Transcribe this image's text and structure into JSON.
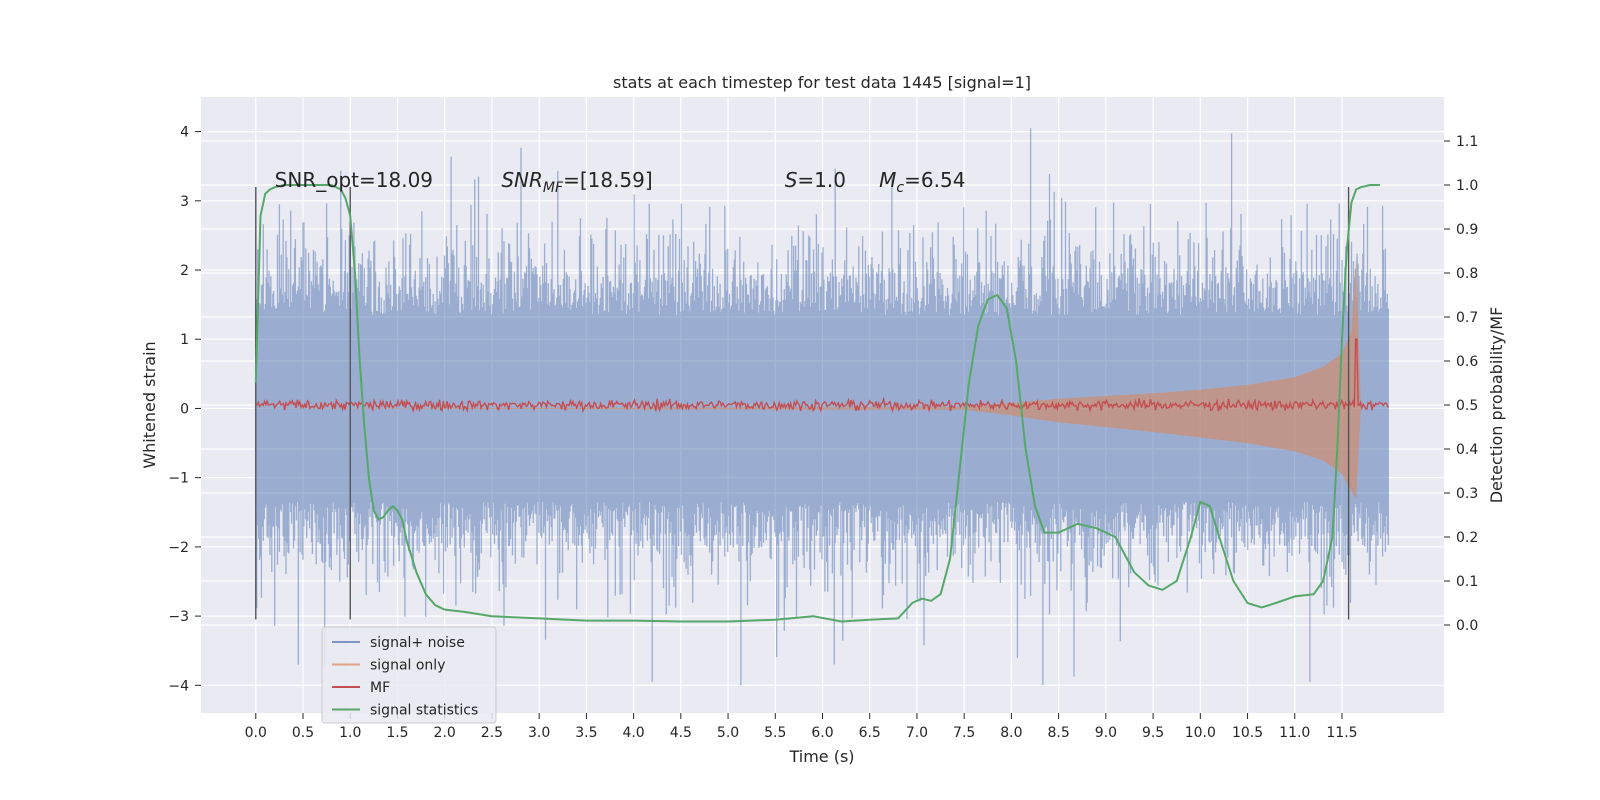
{
  "chart_data": {
    "type": "line",
    "title": "stats at each timestep for test data 1445 [signal=1]",
    "xlabel": "Time (s)",
    "ylabel": "Whitened strain",
    "ylabel_right": "Detection probability/MF",
    "xlim": [
      -0.58,
      12.58
    ],
    "ylim": [
      -4.4,
      4.5
    ],
    "ylim_right": [
      -0.2,
      1.2
    ],
    "x_ticks": [
      0.0,
      0.5,
      1.0,
      1.5,
      2.0,
      2.5,
      3.0,
      3.5,
      4.0,
      4.5,
      5.0,
      5.5,
      6.0,
      6.5,
      7.0,
      7.5,
      8.0,
      8.5,
      9.0,
      9.5,
      10.0,
      10.5,
      11.0,
      11.5
    ],
    "x_tick_labels": [
      "0.0",
      "0.5",
      "1.0",
      "1.5",
      "2.0",
      "2.5",
      "3.0",
      "3.5",
      "4.0",
      "4.5",
      "5.0",
      "5.5",
      "6.0",
      "6.5",
      "7.0",
      "7.5",
      "8.0",
      "8.5",
      "9.0",
      "9.5",
      "10.0",
      "10.5",
      "11.0",
      "11.5"
    ],
    "y_ticks": [
      -4,
      -3,
      -2,
      -1,
      0,
      1,
      2,
      3,
      4
    ],
    "y_tick_labels": [
      "−4",
      "−3",
      "−2",
      "−1",
      "0",
      "1",
      "2",
      "3",
      "4"
    ],
    "y_right_ticks": [
      0.0,
      0.1,
      0.2,
      0.3,
      0.4,
      0.5,
      0.6,
      0.7,
      0.8,
      0.9,
      1.0,
      1.1
    ],
    "y_right_tick_labels": [
      "0.0",
      "0.1",
      "0.2",
      "0.3",
      "0.4",
      "0.5",
      "0.6",
      "0.7",
      "0.8",
      "0.9",
      "1.0",
      "1.1"
    ],
    "grid": true,
    "legend_position": "lower-left",
    "annotations": [
      {
        "text": "SNR_opt=18.09",
        "x": 0.2,
        "y": 3.3
      },
      {
        "text": "SNR_MF=[18.59]",
        "x": 2.6,
        "y": 3.3
      },
      {
        "text": "S=1.0",
        "x": 5.6,
        "y": 3.3
      },
      {
        "text": "M_c=6.54",
        "x": 6.6,
        "y": 3.3
      }
    ],
    "vlines": [
      {
        "x": 0.0,
        "ymin": -3.05,
        "ymax": 3.2
      },
      {
        "x": 1.0,
        "ymin": -3.05,
        "ymax": 3.2
      },
      {
        "x": 11.57,
        "ymin": -3.05,
        "ymax": 3.2
      }
    ],
    "series": [
      {
        "name": "signal+ noise",
        "axis": "left",
        "color": "#4c72b0",
        "kind": "noise-envelope",
        "x_range": [
          0.0,
          11.99
        ],
        "core_amplitude": 1.35,
        "peak_amplitude": 4.1
      },
      {
        "name": "signal only",
        "axis": "left",
        "color": "#dd8452",
        "kind": "chirp-envelope",
        "x": [
          0.0,
          7.5,
          8.0,
          8.5,
          9.0,
          9.5,
          10.0,
          10.5,
          11.0,
          11.3,
          11.5,
          11.6,
          11.65,
          11.7,
          11.99
        ],
        "upper": [
          0.0,
          0.02,
          0.08,
          0.14,
          0.18,
          0.22,
          0.27,
          0.34,
          0.45,
          0.6,
          0.8,
          1.1,
          2.2,
          0.0,
          0.0
        ],
        "lower": [
          0.0,
          -0.02,
          -0.1,
          -0.2,
          -0.27,
          -0.34,
          -0.42,
          -0.5,
          -0.62,
          -0.75,
          -0.95,
          -1.2,
          -1.3,
          0.0,
          0.0
        ]
      },
      {
        "name": "MF",
        "axis": "left",
        "color": "#c44e52",
        "kind": "mf-noise",
        "baseline": 0.05,
        "amplitude": 0.08,
        "spike": {
          "x": 11.65,
          "y": 1.0
        }
      },
      {
        "name": "signal statistics",
        "axis": "right",
        "color": "#55a868",
        "kind": "line",
        "x": [
          0.0,
          0.05,
          0.1,
          0.15,
          0.2,
          0.3,
          0.4,
          0.5,
          0.6,
          0.7,
          0.8,
          0.9,
          0.95,
          1.0,
          1.05,
          1.1,
          1.15,
          1.2,
          1.25,
          1.3,
          1.35,
          1.4,
          1.45,
          1.5,
          1.55,
          1.6,
          1.7,
          1.8,
          1.9,
          2.0,
          2.2,
          2.5,
          3.0,
          3.5,
          4.0,
          4.5,
          5.0,
          5.5,
          5.9,
          6.2,
          6.5,
          6.8,
          6.95,
          7.05,
          7.15,
          7.25,
          7.35,
          7.45,
          7.55,
          7.65,
          7.75,
          7.85,
          7.95,
          8.05,
          8.15,
          8.25,
          8.35,
          8.5,
          8.7,
          8.9,
          9.1,
          9.3,
          9.45,
          9.6,
          9.75,
          9.9,
          10.0,
          10.1,
          10.2,
          10.35,
          10.5,
          10.65,
          10.8,
          11.0,
          11.2,
          11.3,
          11.4,
          11.45,
          11.5,
          11.55,
          11.6,
          11.65,
          11.7,
          11.8,
          11.9
        ],
        "y": [
          0.55,
          0.93,
          0.98,
          0.99,
          0.995,
          1.0,
          1.0,
          1.0,
          1.0,
          1.0,
          1.0,
          0.99,
          0.97,
          0.93,
          0.8,
          0.6,
          0.45,
          0.33,
          0.26,
          0.24,
          0.245,
          0.26,
          0.27,
          0.26,
          0.24,
          0.19,
          0.12,
          0.07,
          0.045,
          0.035,
          0.03,
          0.02,
          0.015,
          0.01,
          0.01,
          0.008,
          0.008,
          0.012,
          0.02,
          0.008,
          0.012,
          0.015,
          0.05,
          0.06,
          0.055,
          0.07,
          0.15,
          0.35,
          0.55,
          0.68,
          0.74,
          0.75,
          0.72,
          0.6,
          0.4,
          0.27,
          0.21,
          0.21,
          0.23,
          0.22,
          0.2,
          0.12,
          0.09,
          0.08,
          0.1,
          0.2,
          0.28,
          0.27,
          0.2,
          0.1,
          0.05,
          0.04,
          0.05,
          0.065,
          0.07,
          0.1,
          0.2,
          0.4,
          0.65,
          0.85,
          0.96,
          0.99,
          0.995,
          1.0,
          1.0
        ]
      }
    ]
  }
}
